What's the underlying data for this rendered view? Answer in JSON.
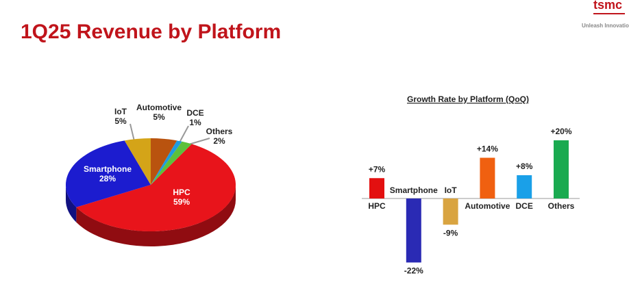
{
  "title": "1Q25 Revenue by Platform",
  "logo": {
    "name": "tsmc",
    "tagline": "Unleash Innovation"
  },
  "chart_data": [
    {
      "type": "pie",
      "categories": [
        "HPC",
        "Smartphone",
        "IoT",
        "Automotive",
        "DCE",
        "Others"
      ],
      "values": [
        59,
        28,
        5,
        5,
        1,
        2
      ],
      "value_labels": [
        "59%",
        "28%",
        "5%",
        "5%",
        "1%",
        "2%"
      ],
      "colors": [
        "#e8141b",
        "#1c1ccf",
        "#d4a418",
        "#b9530f",
        "#1e9be0",
        "#5cc03c"
      ]
    },
    {
      "type": "bar",
      "title": "Growth Rate by Platform (QoQ)",
      "categories": [
        "HPC",
        "Smartphone",
        "IoT",
        "Automotive",
        "DCE",
        "Others"
      ],
      "values": [
        7,
        -22,
        -9,
        14,
        8,
        20
      ],
      "value_labels": [
        "+7%",
        "-22%",
        "-9%",
        "+14%",
        "+8%",
        "+20%"
      ],
      "colors": [
        "#e31010",
        "#2a2ab4",
        "#d9a441",
        "#f06010",
        "#1aa0e8",
        "#1aaa50"
      ]
    }
  ]
}
